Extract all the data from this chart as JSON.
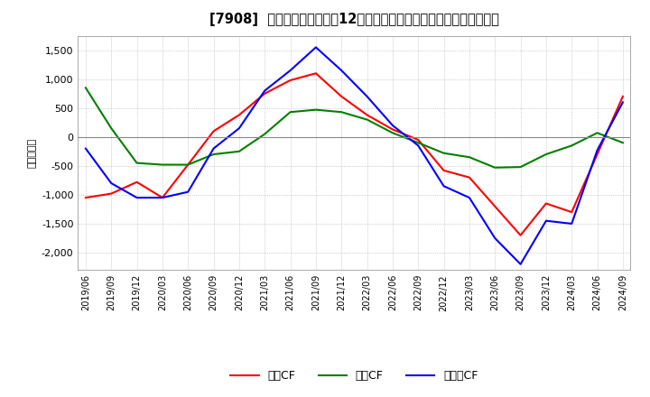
{
  "title": "[7908]  キャッシュフローの12か月移動合計の対前年同期増減額の推移",
  "ylabel": "（百万円）",
  "ylim": [
    -2300,
    1750
  ],
  "yticks": [
    -2000,
    -1500,
    -1000,
    -500,
    0,
    500,
    1000,
    1500
  ],
  "x_labels": [
    "2019/06",
    "2019/09",
    "2019/12",
    "2020/03",
    "2020/06",
    "2020/09",
    "2020/12",
    "2021/03",
    "2021/06",
    "2021/09",
    "2021/12",
    "2022/03",
    "2022/06",
    "2022/09",
    "2022/12",
    "2023/03",
    "2023/06",
    "2023/09",
    "2023/12",
    "2024/03",
    "2024/06",
    "2024/09"
  ],
  "operating_cf": [
    -1050,
    -980,
    -780,
    -1050,
    -480,
    100,
    380,
    750,
    980,
    1100,
    700,
    380,
    130,
    -50,
    -580,
    -700,
    -1200,
    -1700,
    -1150,
    -1300,
    -300,
    700
  ],
  "investing_cf": [
    850,
    150,
    -450,
    -480,
    -480,
    -300,
    -250,
    50,
    430,
    470,
    430,
    300,
    70,
    -100,
    -280,
    -350,
    -530,
    -520,
    -300,
    -150,
    70,
    -100
  ],
  "free_cf": [
    -200,
    -800,
    -1050,
    -1050,
    -950,
    -200,
    150,
    800,
    1150,
    1550,
    1150,
    700,
    200,
    -150,
    -850,
    -1050,
    -1750,
    -2200,
    -1450,
    -1500,
    -230,
    600
  ],
  "operating_color": "#ff0000",
  "investing_color": "#008000",
  "free_color": "#0000ff",
  "background_color": "#ffffff",
  "grid_color": "#aaaaaa",
  "legend_labels": [
    "営業CF",
    "投資CF",
    "フリーCF"
  ]
}
